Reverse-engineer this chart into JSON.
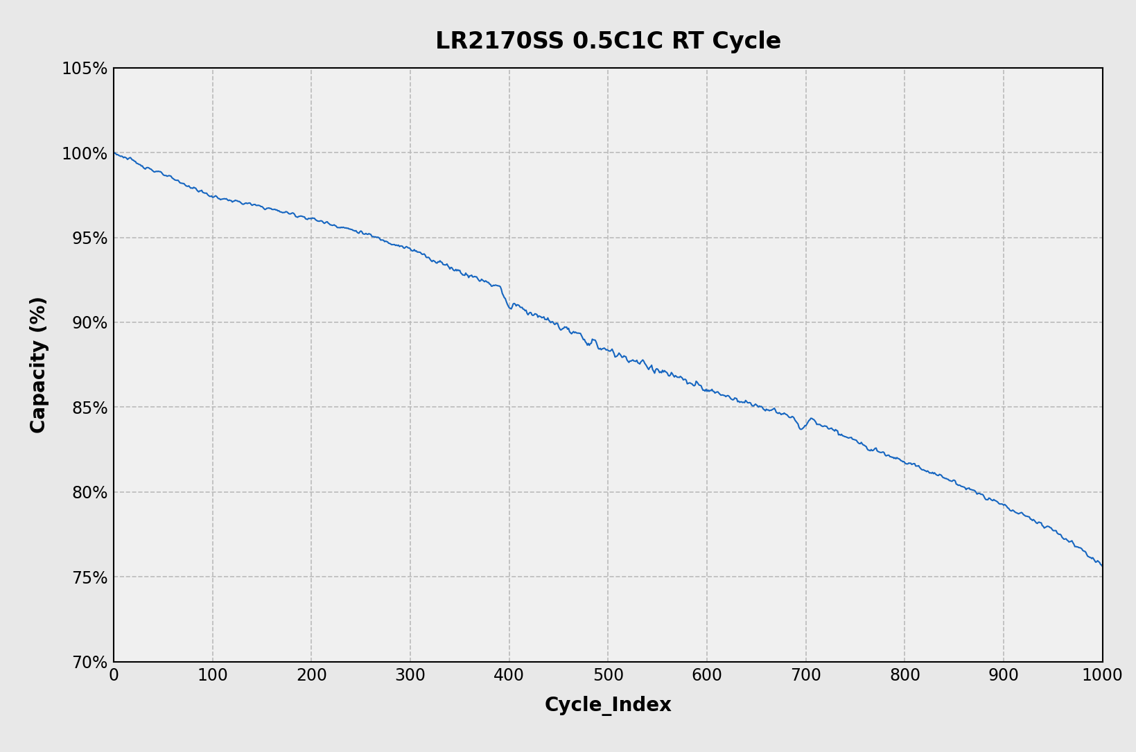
{
  "title": "LR2170SS 0.5C1C RT Cycle",
  "xlabel": "Cycle_Index",
  "ylabel": "Capacity (%)",
  "line_color": "#1565C0",
  "background_color": "#E8E8E8",
  "plot_bg_color": "#F0F0F0",
  "xlim": [
    0,
    1000
  ],
  "ylim": [
    0.7,
    1.05
  ],
  "xticks": [
    0,
    100,
    200,
    300,
    400,
    500,
    600,
    700,
    800,
    900,
    1000
  ],
  "yticks": [
    0.7,
    0.75,
    0.8,
    0.85,
    0.9,
    0.95,
    1.0,
    1.05
  ],
  "title_fontsize": 24,
  "label_fontsize": 20,
  "tick_fontsize": 17,
  "line_width": 1.5,
  "grid_color": "#BBBBBB",
  "grid_linestyle": "--",
  "grid_linewidth": 1.2,
  "curve_anchor_x": [
    0,
    50,
    100,
    150,
    200,
    250,
    300,
    350,
    390,
    395,
    400,
    405,
    410,
    450,
    500,
    550,
    600,
    650,
    690,
    695,
    700,
    705,
    710,
    750,
    800,
    850,
    900,
    950,
    1000
  ],
  "curve_anchor_y": [
    1.0,
    0.987,
    0.974,
    0.968,
    0.961,
    0.953,
    0.943,
    0.93,
    0.921,
    0.916,
    0.907,
    0.912,
    0.909,
    0.898,
    0.883,
    0.872,
    0.86,
    0.851,
    0.843,
    0.836,
    0.839,
    0.843,
    0.841,
    0.83,
    0.818,
    0.806,
    0.792,
    0.778,
    0.757
  ],
  "noise_seed": 123,
  "noise_base": 0.0008,
  "noise_regions": {
    "300_450": 1.8,
    "450_600": 2.2,
    "600_720": 1.5,
    "720_1000": 1.3
  }
}
